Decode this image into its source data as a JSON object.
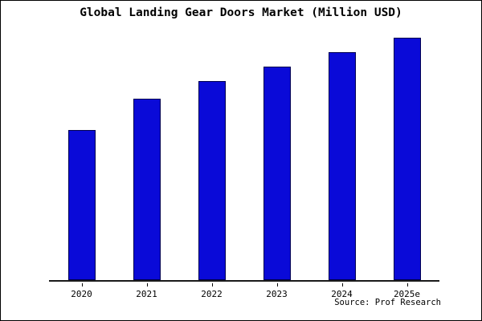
{
  "chart_data": {
    "type": "bar",
    "title": "Global Landing Gear Doors Market (Million USD)",
    "categories": [
      "2020",
      "2021",
      "2022",
      "2023",
      "2024",
      "2025e"
    ],
    "values": [
      62,
      75,
      82,
      88,
      94,
      100
    ],
    "xlabel": "",
    "ylabel": "",
    "ylim": [
      0,
      100
    ],
    "grid": false,
    "legend": "none"
  },
  "source": "Source: Prof Research",
  "colors": {
    "bar_fill": "#0a0ad8",
    "bar_border": "#000050",
    "axis": "#1a1a1a",
    "background": "#ffffff"
  }
}
